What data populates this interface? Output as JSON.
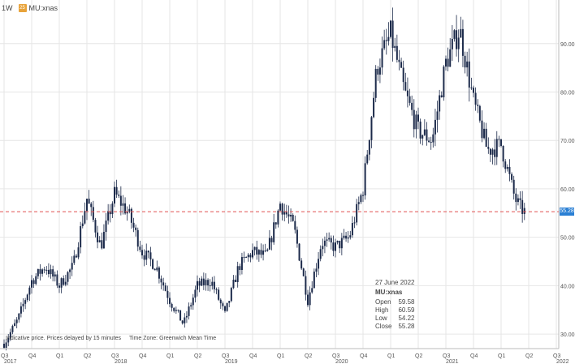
{
  "header": {
    "interval": "1W",
    "symbol_badge": "25",
    "symbol": "MU:xnas"
  },
  "info": {
    "date": "27 June 2022",
    "symbol": "MU:xnas",
    "rows": [
      {
        "label": "Open",
        "value": "59.58"
      },
      {
        "label": "High",
        "value": "60.59"
      },
      {
        "label": "Low",
        "value": "54.22"
      },
      {
        "label": "Close",
        "value": "55.28"
      }
    ]
  },
  "footnote": {
    "text": "Indicative price. Prices delayed by 15 minutes",
    "timezone": "Time Zone: Greenwich Mean Time"
  },
  "current_price_label": "55.28",
  "colors": {
    "candle": "#1c2a4a",
    "grid": "#e6e6e6",
    "price_line": "#e05050",
    "price_tag": "#2a7fd4"
  },
  "chart_data": {
    "type": "candlestick",
    "title": "",
    "xlabel": "",
    "ylabel": "",
    "interval": "1W",
    "ylim": [
      27,
      99
    ],
    "yticks": [
      30,
      40,
      50,
      60,
      70,
      80,
      90
    ],
    "ytick_labels": [
      "30.00",
      "40.00",
      "50.00",
      "60.00",
      "70.00",
      "80.00",
      "90.00"
    ],
    "y_axis_position": "right",
    "grid": true,
    "quarter_ticks": [
      "Q3",
      "Q4",
      "Q1",
      "Q2",
      "Q3",
      "Q4",
      "Q1",
      "Q2",
      "Q3",
      "Q4",
      "Q1",
      "Q2",
      "Q3",
      "Q4",
      "Q1",
      "Q2",
      "Q3",
      "Q4",
      "Q1",
      "Q2",
      "Q3"
    ],
    "year_labels": [
      {
        "label": "2017",
        "quarter_index": 0
      },
      {
        "label": "2018",
        "quarter_index": 4
      },
      {
        "label": "2019",
        "quarter_index": 8
      },
      {
        "label": "2020",
        "quarter_index": 12
      },
      {
        "label": "2021",
        "quarter_index": 16
      },
      {
        "label": "2022",
        "quarter_index": 20
      }
    ],
    "price_line": 55.28,
    "path": [
      {
        "q": 0.0,
        "v": 28
      },
      {
        "q": 0.5,
        "v": 33
      },
      {
        "q": 1.0,
        "v": 41
      },
      {
        "q": 1.5,
        "v": 44
      },
      {
        "q": 2.0,
        "v": 40
      },
      {
        "q": 2.5,
        "v": 44
      },
      {
        "q": 3.0,
        "v": 58
      },
      {
        "q": 3.5,
        "v": 48
      },
      {
        "q": 4.0,
        "v": 59
      },
      {
        "q": 4.5,
        "v": 55
      },
      {
        "q": 5.0,
        "v": 47
      },
      {
        "q": 5.5,
        "v": 44
      },
      {
        "q": 6.0,
        "v": 37
      },
      {
        "q": 6.5,
        "v": 32
      },
      {
        "q": 7.0,
        "v": 40
      },
      {
        "q": 7.5,
        "v": 41
      },
      {
        "q": 8.0,
        "v": 34
      },
      {
        "q": 8.5,
        "v": 44
      },
      {
        "q": 9.0,
        "v": 47
      },
      {
        "q": 9.5,
        "v": 46
      },
      {
        "q": 10.0,
        "v": 57
      },
      {
        "q": 10.5,
        "v": 52
      },
      {
        "q": 11.0,
        "v": 37
      },
      {
        "q": 11.5,
        "v": 49
      },
      {
        "q": 12.0,
        "v": 48
      },
      {
        "q": 12.5,
        "v": 50
      },
      {
        "q": 13.0,
        "v": 60
      },
      {
        "q": 13.5,
        "v": 85
      },
      {
        "q": 14.0,
        "v": 92
      },
      {
        "q": 14.5,
        "v": 80
      },
      {
        "q": 15.0,
        "v": 72
      },
      {
        "q": 15.5,
        "v": 70
      },
      {
        "q": 16.0,
        "v": 86
      },
      {
        "q": 16.5,
        "v": 93
      },
      {
        "q": 17.0,
        "v": 78
      },
      {
        "q": 17.5,
        "v": 68
      },
      {
        "q": 18.0,
        "v": 69
      },
      {
        "q": 18.5,
        "v": 58
      },
      {
        "q": 18.7,
        "v": 56
      },
      {
        "q": 18.85,
        "v": 55.3
      }
    ]
  }
}
